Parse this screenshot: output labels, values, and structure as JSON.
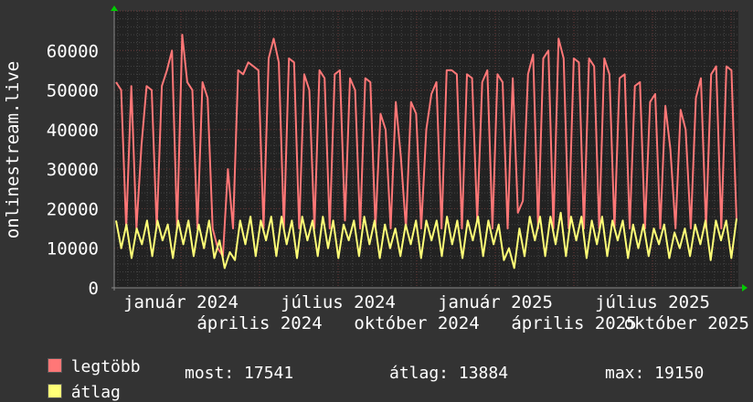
{
  "chart_data": {
    "type": "line",
    "ylabel": "onlinestream.live",
    "ylim": [
      0,
      70000
    ],
    "yticks": [
      0,
      10000,
      20000,
      30000,
      40000,
      50000,
      60000
    ],
    "xtick_labels": [
      "január 2024",
      "április 2024",
      "július 2024",
      "október 2024",
      "január 2025",
      "április 2025",
      "július 2025",
      "október 2025"
    ],
    "grid": true,
    "background": "#222222",
    "series": [
      {
        "name": "legtöbb",
        "color": "#ff7777",
        "values": [
          52000,
          50000,
          15000,
          51000,
          15000,
          36000,
          51000,
          50000,
          15000,
          51000,
          55000,
          60000,
          15000,
          64000,
          52000,
          50000,
          15000,
          52000,
          48000,
          15000,
          10000,
          8000,
          30000,
          15000,
          55000,
          54000,
          57000,
          56000,
          55000,
          15000,
          58000,
          63000,
          57000,
          15000,
          58000,
          57000,
          15000,
          54000,
          50000,
          15000,
          55000,
          53000,
          15000,
          54000,
          55000,
          17000,
          53000,
          50000,
          15000,
          53000,
          52000,
          15000,
          44000,
          40000,
          15000,
          47000,
          33000,
          15000,
          47000,
          44000,
          15000,
          40000,
          49000,
          52000,
          15000,
          55000,
          55000,
          54000,
          15000,
          54000,
          53000,
          17000,
          52000,
          55000,
          15000,
          54000,
          52000,
          15000,
          53000,
          19000,
          22000,
          54000,
          59000,
          15000,
          58000,
          60000,
          15000,
          63000,
          58000,
          15000,
          58000,
          57000,
          15000,
          58000,
          56000,
          15000,
          58000,
          54000,
          15000,
          53000,
          54000,
          15000,
          51000,
          52000,
          15000,
          47000,
          49000,
          15000,
          46000,
          35000,
          15000,
          45000,
          40000,
          15000,
          48000,
          53000,
          15000,
          54000,
          56000,
          15000,
          56000,
          55000,
          17000
        ]
      },
      {
        "name": "átlag",
        "color": "#ffff77",
        "values": [
          17000,
          10000,
          16000,
          7500,
          15000,
          11000,
          17000,
          8000,
          17000,
          12000,
          16000,
          7500,
          17000,
          11000,
          17000,
          8000,
          16000,
          10000,
          17000,
          7500,
          12000,
          5000,
          9000,
          7000,
          17000,
          11000,
          18000,
          8000,
          17000,
          12000,
          18000,
          8000,
          18000,
          11000,
          17000,
          7500,
          18000,
          12000,
          17000,
          8000,
          18000,
          10000,
          17000,
          7500,
          16000,
          12000,
          17000,
          8000,
          18000,
          11000,
          17000,
          7500,
          16000,
          10000,
          15000,
          8000,
          16000,
          11000,
          17000,
          7500,
          17000,
          12000,
          17000,
          8000,
          18000,
          11000,
          17000,
          7500,
          17000,
          12000,
          18000,
          8000,
          17000,
          11000,
          16000,
          7000,
          10000,
          5000,
          15000,
          8000,
          18000,
          12000,
          18000,
          8000,
          18000,
          11000,
          19000,
          8000,
          18000,
          12000,
          18000,
          7500,
          17000,
          11000,
          18000,
          8000,
          17000,
          12000,
          17000,
          7500,
          16000,
          10000,
          16000,
          8000,
          15000,
          11000,
          16000,
          7500,
          14000,
          10000,
          15000,
          8000,
          16000,
          11000,
          17000,
          7000,
          17000,
          12000,
          17000,
          7500,
          17500
        ]
      }
    ]
  },
  "legend": {
    "items": [
      {
        "label": "legtöbb",
        "color": "#ff7777"
      },
      {
        "label": "átlag",
        "color": "#ffff77"
      }
    ],
    "stats": {
      "most": "most: 17541",
      "atlag": "átlag: 13884",
      "max": "max: 19150"
    }
  }
}
